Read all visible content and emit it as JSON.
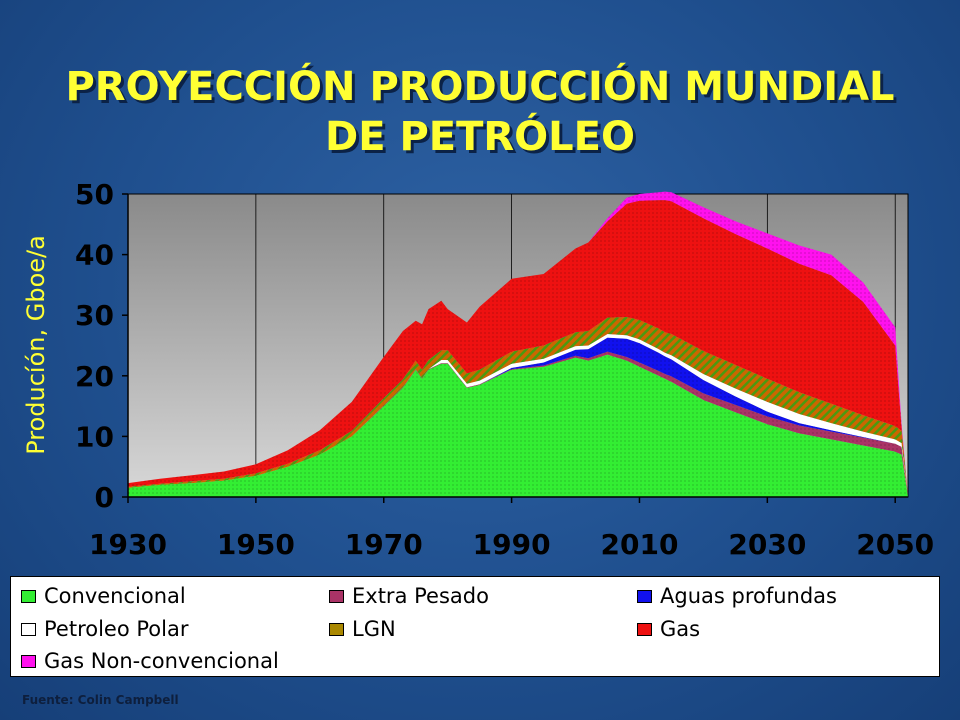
{
  "title": {
    "line1": "PROYECCIÓN PRODUCCIÓN MUNDIAL",
    "line2": "DE PETRÓLEO"
  },
  "source": "Fuente: Colin Campbell",
  "chart_data": {
    "type": "area",
    "stacked": true,
    "ylabel": "Producíón, Gboe/a",
    "xlabel": "",
    "xlim": [
      1930,
      2052
    ],
    "ylim": [
      0,
      50
    ],
    "x_ticks": [
      "1930",
      "1950",
      "1970",
      "1990",
      "2010",
      "2030",
      "2050"
    ],
    "y_ticks": [
      "0",
      "10",
      "20",
      "30",
      "40",
      "50"
    ],
    "grid": true,
    "legend_position": "bottom",
    "x": [
      1930,
      1935,
      1940,
      1945,
      1950,
      1955,
      1960,
      1965,
      1970,
      1973,
      1975,
      1976,
      1977,
      1979,
      1980,
      1983,
      1985,
      1990,
      1995,
      2000,
      2002,
      2005,
      2008,
      2010,
      2013,
      2014,
      2015,
      2020,
      2025,
      2030,
      2035,
      2040,
      2045,
      2050,
      2051,
      2052
    ],
    "series": [
      {
        "name": "Convencional",
        "color": "#33ee33",
        "values": [
          1.5,
          2,
          2.3,
          2.7,
          3.5,
          5,
          7,
          10,
          15,
          18,
          21,
          19.5,
          21,
          22,
          22,
          18,
          18.5,
          21,
          21.5,
          23,
          22.5,
          23.5,
          22.5,
          21.5,
          20,
          19.5,
          19,
          16,
          14,
          12,
          10.5,
          9.5,
          8.5,
          7.5,
          7,
          0
        ]
      },
      {
        "name": "Extra Pesado",
        "color": "#aa3366",
        "values": [
          0,
          0,
          0,
          0,
          0,
          0,
          0,
          0,
          0.1,
          0.1,
          0.1,
          0.1,
          0.1,
          0.1,
          0.1,
          0.1,
          0.1,
          0.1,
          0.2,
          0.3,
          0.4,
          0.5,
          0.6,
          0.7,
          0.8,
          0.8,
          0.9,
          1.1,
          1.2,
          1.3,
          1.3,
          1.3,
          1.3,
          1.3,
          1.3,
          0
        ]
      },
      {
        "name": "Aguas profundas",
        "color": "#1111ee",
        "values": [
          0,
          0,
          0,
          0,
          0,
          0,
          0,
          0,
          0,
          0,
          0,
          0,
          0,
          0,
          0,
          0,
          0,
          0.2,
          0.5,
          1,
          1.5,
          2.3,
          3,
          3.2,
          3,
          2.9,
          2.8,
          2.2,
          1.4,
          0.8,
          0.4,
          0.2,
          0.1,
          0,
          0,
          0
        ]
      },
      {
        "name": "Petroleo Polar",
        "color": "#ffffff",
        "values": [
          0,
          0,
          0,
          0,
          0,
          0,
          0,
          0,
          0,
          0,
          0,
          0,
          0,
          0.5,
          0.5,
          0.6,
          0.6,
          0.7,
          0.6,
          0.6,
          0.6,
          0.6,
          0.6,
          0.6,
          0.6,
          0.6,
          0.7,
          1,
          1.3,
          1.6,
          1.5,
          1.2,
          0.9,
          0.7,
          0.6,
          0
        ]
      },
      {
        "name": "LGN",
        "color": "#aa8800",
        "values": [
          0.2,
          0.2,
          0.3,
          0.3,
          0.4,
          0.5,
          0.7,
          0.9,
          1.2,
          1.3,
          1.4,
          1.4,
          1.5,
          1.6,
          1.6,
          1.7,
          1.8,
          2,
          2.2,
          2.3,
          2.4,
          2.7,
          3,
          3.2,
          3.4,
          3.4,
          3.5,
          3.8,
          3.9,
          3.8,
          3.6,
          3.2,
          2.7,
          2.2,
          2,
          0
        ]
      },
      {
        "name": "Gas",
        "color": "#ee1111",
        "values": [
          0.6,
          0.8,
          1,
          1.2,
          1.5,
          2.2,
          3.3,
          4.8,
          6.8,
          8,
          6.6,
          7.5,
          8.4,
          8.2,
          6.8,
          8.4,
          10.4,
          12,
          11.8,
          13.8,
          14.6,
          15.9,
          18.7,
          19.7,
          21.2,
          21.8,
          21.9,
          21.9,
          21.6,
          21.5,
          21.2,
          21.2,
          18.7,
          13.3,
          0.6,
          0
        ]
      },
      {
        "name": "Gas Non-convencional",
        "color": "#ff11ee",
        "values": [
          0,
          0,
          0,
          0,
          0,
          0,
          0,
          0,
          0,
          0,
          0,
          0,
          0,
          0,
          0,
          0,
          0,
          0,
          0,
          0,
          0,
          0.5,
          1,
          1.1,
          1.3,
          1.4,
          1.5,
          1.8,
          2.1,
          2.5,
          3,
          3.4,
          3.2,
          3,
          0.5,
          0
        ]
      }
    ]
  },
  "legend": {
    "items": [
      {
        "label": "Convencional",
        "color": "#33ee33"
      },
      {
        "label": "Extra Pesado",
        "color": "#aa3366"
      },
      {
        "label": "Aguas profundas",
        "color": "#1111ee"
      },
      {
        "label": "Petroleo Polar",
        "color": "#ffffff"
      },
      {
        "label": "LGN",
        "color": "#aa8800"
      },
      {
        "label": "Gas",
        "color": "#ee1111"
      },
      {
        "label": "Gas Non-convencional",
        "color": "#ff11ee"
      }
    ]
  }
}
